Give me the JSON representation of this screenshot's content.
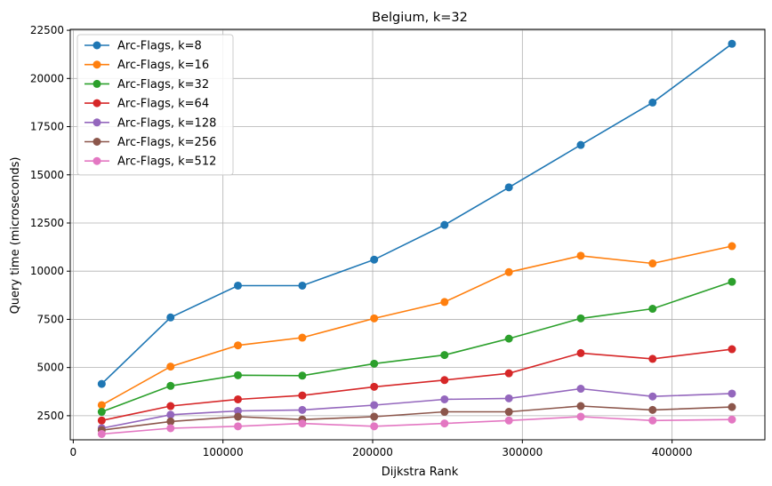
{
  "chart_data": {
    "type": "line",
    "title": "Belgium, k=32",
    "xlabel": "Dijkstra Rank",
    "ylabel": "Query time (microseconds)",
    "xlim": [
      -2000,
      462000
    ],
    "ylim": [
      1250,
      22550
    ],
    "xticks": [
      0,
      100000,
      200000,
      300000,
      400000
    ],
    "yticks": [
      2500,
      5000,
      7500,
      10000,
      12500,
      15000,
      17500,
      20000,
      22500
    ],
    "grid": true,
    "legend_position": "top-left",
    "x": [
      19000,
      65000,
      110000,
      153000,
      201000,
      248000,
      291000,
      339000,
      387000,
      440000
    ],
    "series": [
      {
        "name": "Arc-Flags, k=8",
        "color": "#1f77b4",
        "values": [
          4150,
          7600,
          9250,
          9250,
          10600,
          12400,
          14350,
          16550,
          18750,
          21800
        ]
      },
      {
        "name": "Arc-Flags, k=16",
        "color": "#ff7f0e",
        "values": [
          3050,
          5050,
          6150,
          6550,
          7550,
          8400,
          9950,
          10800,
          10400,
          11300
        ]
      },
      {
        "name": "Arc-Flags, k=32",
        "color": "#2ca02c",
        "values": [
          2700,
          4050,
          4600,
          4580,
          5200,
          5650,
          6500,
          7550,
          8050,
          9450
        ]
      },
      {
        "name": "Arc-Flags, k=64",
        "color": "#d62728",
        "values": [
          2250,
          3000,
          3350,
          3550,
          4000,
          4350,
          4700,
          5750,
          5450,
          5950
        ]
      },
      {
        "name": "Arc-Flags, k=128",
        "color": "#9467bd",
        "values": [
          1850,
          2550,
          2750,
          2800,
          3050,
          3350,
          3400,
          3900,
          3500,
          3650
        ]
      },
      {
        "name": "Arc-Flags, k=256",
        "color": "#8c564b",
        "values": [
          1750,
          2200,
          2450,
          2300,
          2450,
          2700,
          2700,
          3000,
          2800,
          2950
        ]
      },
      {
        "name": "Arc-Flags, k=512",
        "color": "#e377c2",
        "values": [
          1550,
          1850,
          1950,
          2100,
          1950,
          2100,
          2250,
          2450,
          2250,
          2300
        ]
      }
    ]
  }
}
